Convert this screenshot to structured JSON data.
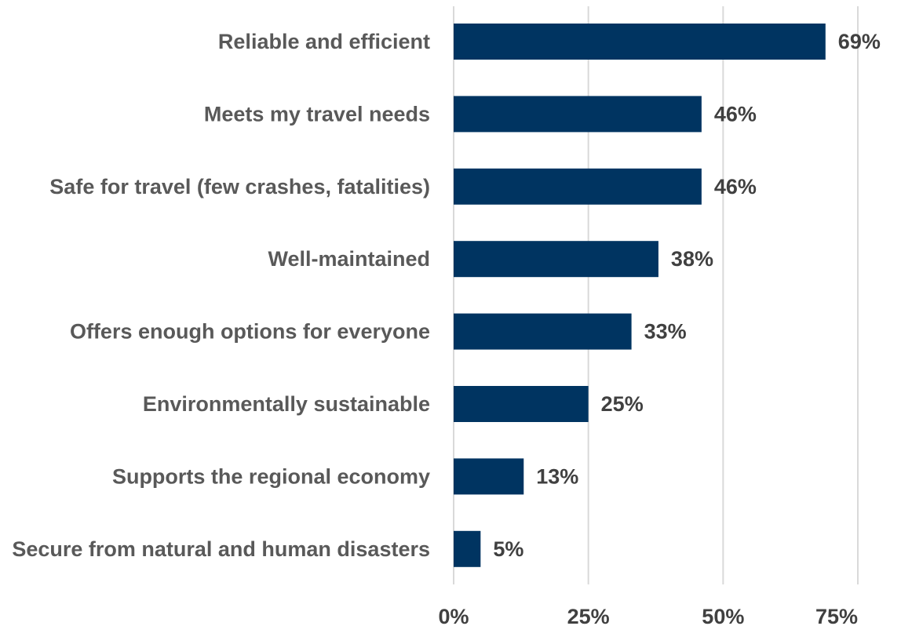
{
  "chart_data": {
    "type": "bar",
    "orientation": "horizontal",
    "categories": [
      "Reliable and efficient",
      "Meets my travel needs",
      "Safe for travel (few crashes, fatalities)",
      "Well-maintained",
      "Offers enough options for everyone",
      "Environmentally sustainable",
      "Supports the regional economy",
      "Secure from natural and human disasters"
    ],
    "values": [
      69,
      46,
      46,
      38,
      33,
      25,
      13,
      5
    ],
    "data_labels": [
      "69%",
      "46%",
      "46%",
      "38%",
      "33%",
      "25%",
      "13%",
      "5%"
    ],
    "xlim": [
      0,
      75
    ],
    "xticks": [
      0,
      25,
      50,
      75
    ],
    "xtick_labels": [
      "0%",
      "25%",
      "50%",
      "75%"
    ],
    "grid": true,
    "legend": "none",
    "bar_color": "#003461",
    "title": "",
    "xlabel": "",
    "ylabel": ""
  }
}
